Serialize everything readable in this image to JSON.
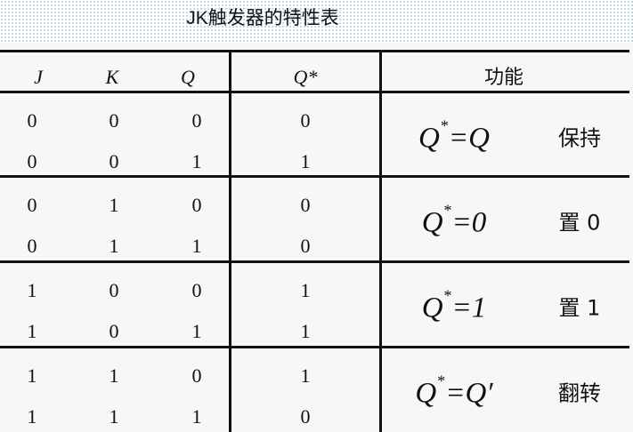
{
  "title": "JK触发器的特性表",
  "header": {
    "j": "J",
    "k": "K",
    "q": "Q",
    "qstar": "Q*",
    "function": "功能"
  },
  "groups": [
    {
      "rows": [
        [
          "0",
          "0",
          "0",
          "0"
        ],
        [
          "0",
          "0",
          "1",
          "1"
        ]
      ],
      "formula_lhs": "Q",
      "formula_star": "*",
      "formula_rhs": "=Q",
      "label": "保持"
    },
    {
      "rows": [
        [
          "0",
          "1",
          "0",
          "0"
        ],
        [
          "0",
          "1",
          "1",
          "0"
        ]
      ],
      "formula_lhs": "Q",
      "formula_star": "*",
      "formula_rhs": "=0",
      "label": "置 0"
    },
    {
      "rows": [
        [
          "1",
          "0",
          "0",
          "1"
        ],
        [
          "1",
          "0",
          "1",
          "1"
        ]
      ],
      "formula_lhs": "Q",
      "formula_star": "*",
      "formula_rhs": "=1",
      "label": "置 1"
    },
    {
      "rows": [
        [
          "1",
          "1",
          "0",
          "1"
        ],
        [
          "1",
          "1",
          "1",
          "0"
        ]
      ],
      "formula_lhs": "Q",
      "formula_star": "*",
      "formula_rhs": "=Q′",
      "label": "翻转"
    }
  ]
}
